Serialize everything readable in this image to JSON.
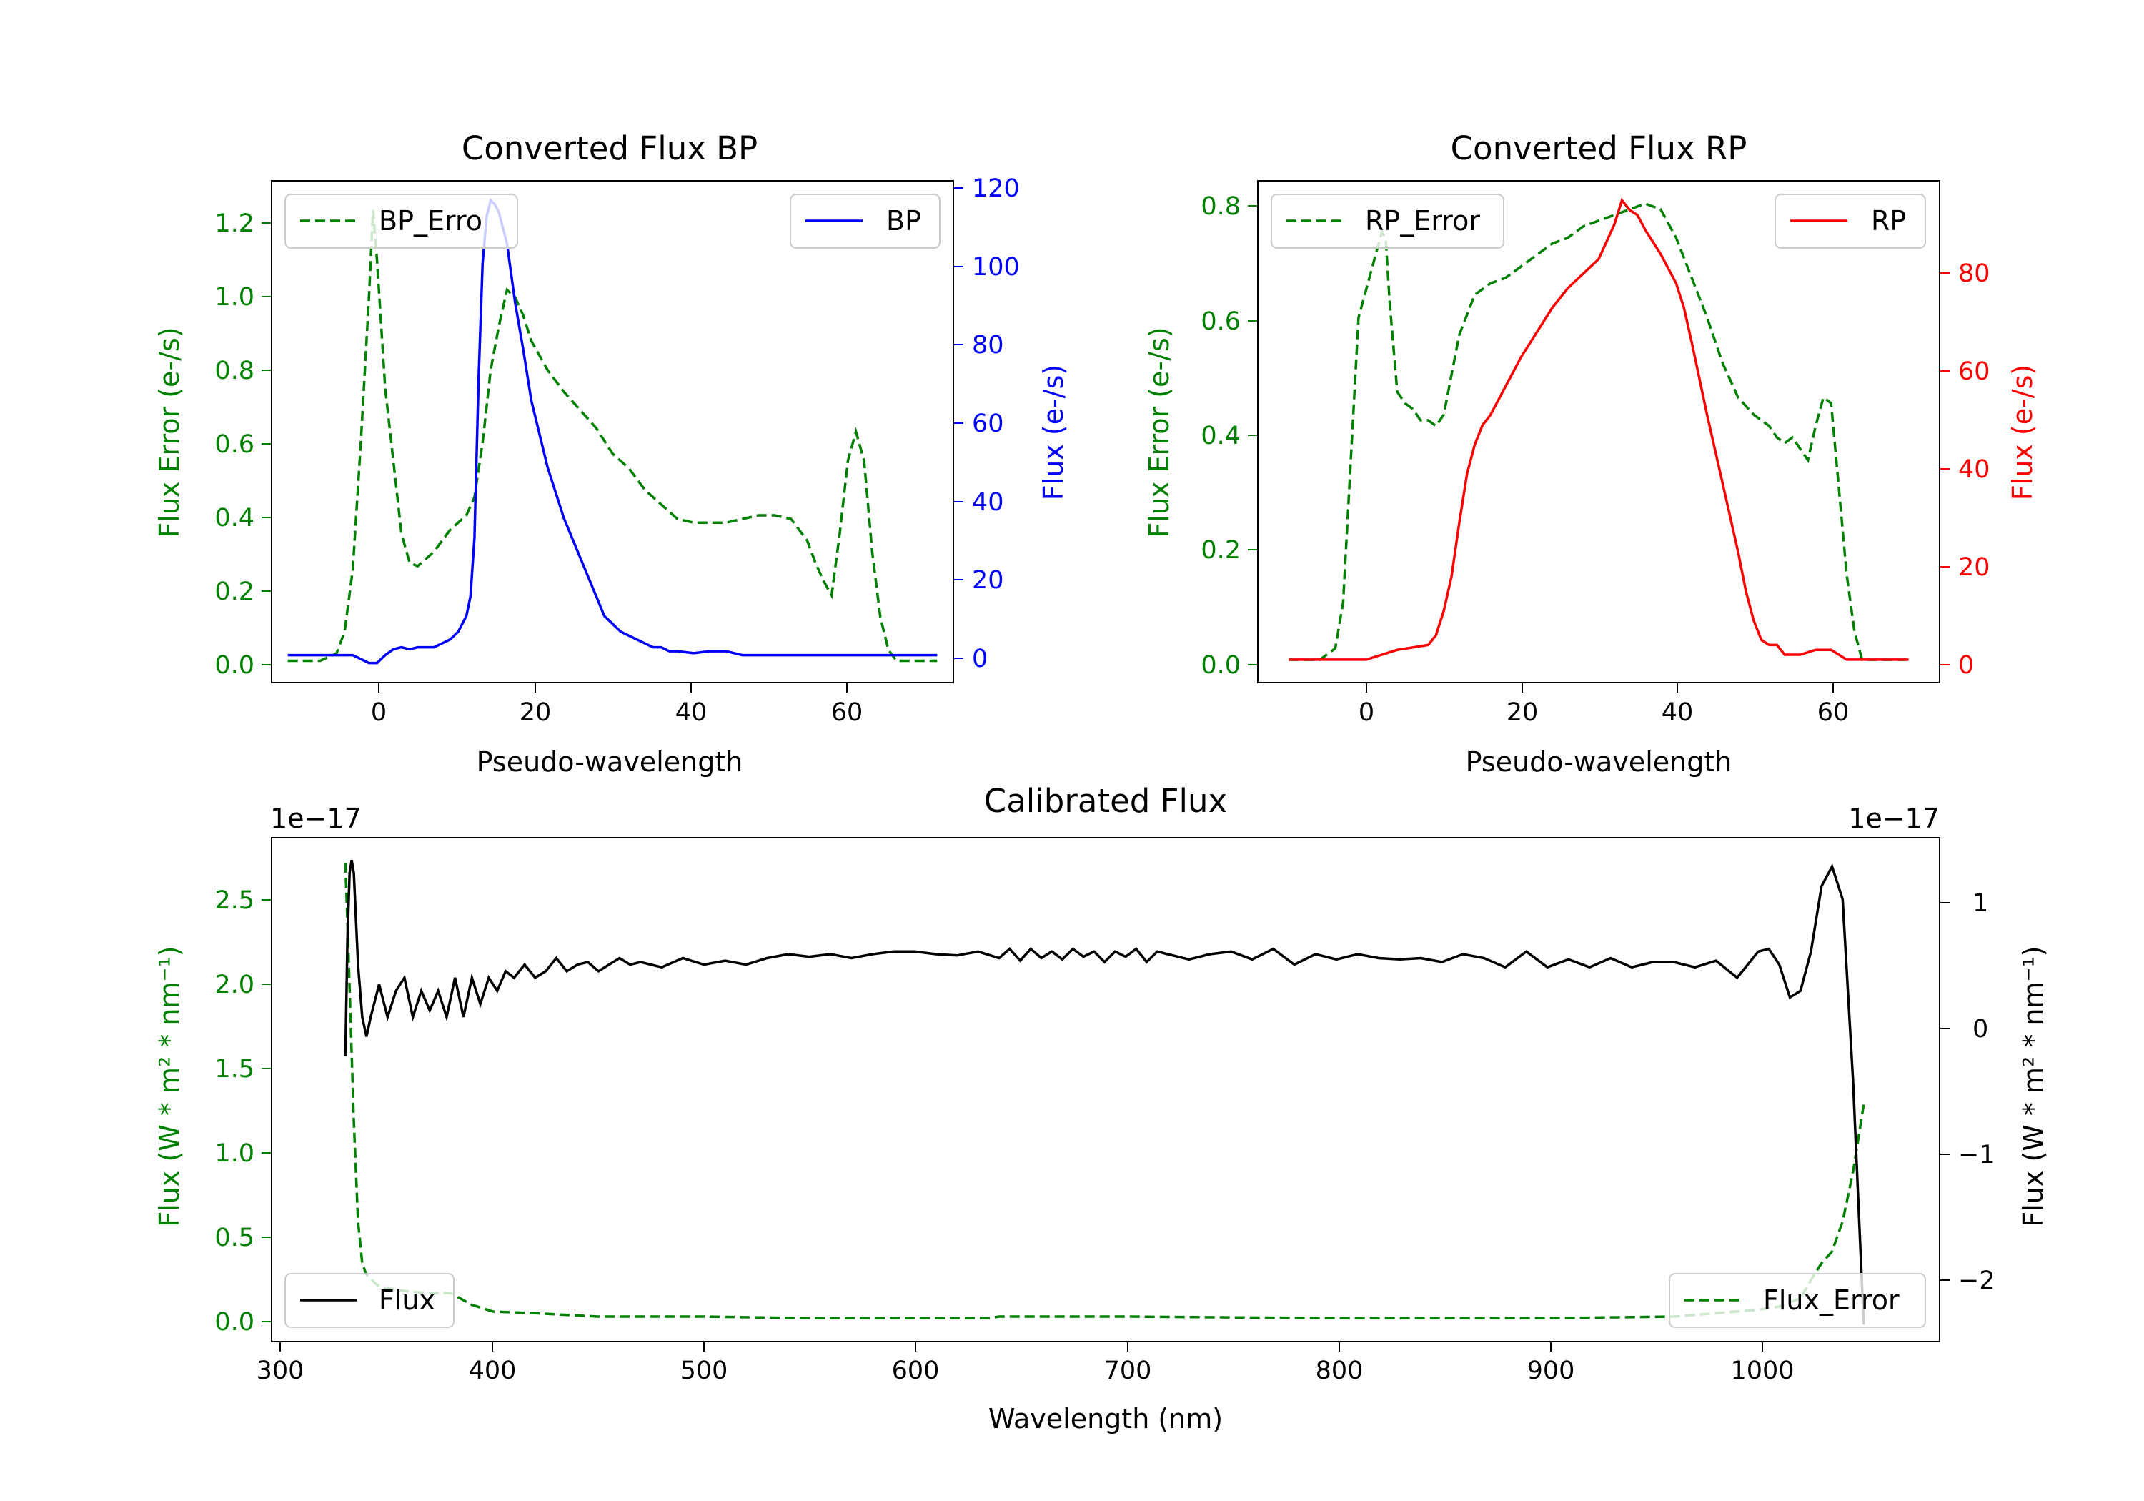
{
  "chart_data": [
    {
      "type": "line",
      "title": "Converted Flux BP",
      "xlabel": "Pseudo-wavelength",
      "ylabel_left": "Flux Error (e-/s)",
      "ylabel_right": "Flux (e-/s)",
      "xlim": [
        -12,
        72
      ],
      "ylim_left": [
        -0.06,
        1.32
      ],
      "ylim_right": [
        -7,
        121
      ],
      "xticks": [
        0,
        20,
        40,
        60
      ],
      "yticks_left": [
        0.0,
        0.2,
        0.4,
        0.6,
        0.8,
        1.0,
        1.2
      ],
      "yticks_left_labels": [
        "0.0",
        "0.2",
        "0.4",
        "0.6",
        "0.8",
        "1.0",
        "1.2"
      ],
      "yticks_right": [
        0,
        20,
        40,
        60,
        80,
        100,
        120
      ],
      "yticks_right_labels": [
        "0",
        "20",
        "40",
        "60",
        "80",
        "100",
        "120"
      ],
      "legend_left_position": "upper-left",
      "legend_right_position": "upper-right",
      "colors": {
        "left_axis": "#008000",
        "right_axis": "#0000ff"
      },
      "series": [
        {
          "name": "BP_Error",
          "legend_label": "BP_Erro",
          "axis": "left",
          "color": "#008000",
          "dash": true,
          "x": [
            -10,
            -6,
            -4,
            -3,
            -2,
            -1,
            0,
            0.5,
            1,
            2,
            3,
            4,
            5,
            6,
            8,
            10,
            12,
            13,
            14,
            15,
            16,
            17,
            18,
            19,
            20,
            22,
            24,
            26,
            28,
            30,
            32,
            34,
            36,
            38,
            40,
            42,
            44,
            46,
            48,
            50,
            52,
            54,
            55,
            56,
            57,
            58,
            59,
            60,
            61,
            62,
            63,
            64,
            65,
            66,
            68,
            70
          ],
          "y": [
            0.0,
            0.0,
            0.02,
            0.08,
            0.25,
            0.6,
            1.0,
            1.24,
            1.1,
            0.75,
            0.55,
            0.35,
            0.27,
            0.26,
            0.3,
            0.36,
            0.4,
            0.45,
            0.6,
            0.8,
            0.92,
            1.02,
            1.0,
            0.95,
            0.88,
            0.8,
            0.74,
            0.69,
            0.64,
            0.57,
            0.53,
            0.47,
            0.43,
            0.39,
            0.38,
            0.38,
            0.38,
            0.39,
            0.4,
            0.4,
            0.39,
            0.33,
            0.27,
            0.22,
            0.18,
            0.35,
            0.55,
            0.63,
            0.55,
            0.3,
            0.12,
            0.03,
            0.0,
            0.0,
            0.0,
            0.0
          ]
        },
        {
          "name": "BP",
          "legend_label": "BP",
          "axis": "right",
          "color": "#0000ff",
          "dash": false,
          "x": [
            -10,
            -6,
            -4,
            -2,
            -1,
            0,
            1,
            2,
            3,
            4,
            5,
            6,
            7,
            8,
            9,
            10,
            11,
            12,
            12.5,
            13,
            13.5,
            14,
            14.5,
            15,
            15.5,
            16,
            17,
            18,
            19,
            20,
            22,
            24,
            26,
            28,
            29,
            30,
            31,
            32,
            33,
            34,
            35,
            36,
            37,
            38,
            40,
            42,
            44,
            46,
            48,
            50,
            52,
            54,
            56,
            58,
            60,
            62,
            64,
            66,
            68,
            70
          ],
          "y": [
            0,
            0,
            0,
            0,
            -1,
            -2,
            -2,
            0,
            1.5,
            2,
            1.5,
            2,
            2,
            2,
            3,
            4,
            6,
            10,
            15,
            30,
            70,
            100,
            112,
            116,
            115,
            113,
            105,
            90,
            78,
            65,
            48,
            35,
            25,
            15,
            10,
            8,
            6,
            5,
            4,
            3,
            2,
            2,
            1,
            1,
            0.5,
            1,
            1,
            0,
            0,
            0,
            0,
            0,
            0,
            0,
            0,
            0,
            0,
            0,
            0,
            0
          ]
        }
      ]
    },
    {
      "type": "line",
      "title": "Converted Flux RP",
      "xlabel": "Pseudo-wavelength",
      "ylabel_left": "Flux Error (e-/s)",
      "ylabel_right": "Flux (e-/s)",
      "xlim": [
        -14,
        74
      ],
      "ylim_left": [
        -0.04,
        0.84
      ],
      "ylim_right": [
        -4.7,
        98
      ],
      "xticks": [
        0,
        20,
        40,
        60
      ],
      "yticks_left": [
        0.0,
        0.2,
        0.4,
        0.6,
        0.8
      ],
      "yticks_left_labels": [
        "0.0",
        "0.2",
        "0.4",
        "0.6",
        "0.8"
      ],
      "yticks_right": [
        0,
        20,
        40,
        60,
        80
      ],
      "yticks_right_labels": [
        "0",
        "20",
        "40",
        "60",
        "80"
      ],
      "legend_left_position": "upper-left",
      "legend_right_position": "upper-right",
      "colors": {
        "left_axis": "#008000",
        "right_axis": "#ff0000"
      },
      "series": [
        {
          "name": "RP_Error",
          "legend_label": "RP_Error",
          "axis": "left",
          "color": "#008000",
          "dash": true,
          "x": [
            -10,
            -6,
            -4,
            -3,
            -2,
            -1,
            0,
            1,
            2,
            2.5,
            3,
            4,
            5,
            6,
            7,
            8,
            9,
            10,
            12,
            14,
            16,
            18,
            20,
            22,
            24,
            26,
            28,
            30,
            32,
            34,
            36,
            38,
            40,
            42,
            44,
            46,
            48,
            50,
            52,
            53,
            54,
            55,
            56,
            57,
            58,
            59,
            60,
            61,
            62,
            63,
            64,
            65,
            67,
            70
          ],
          "y": [
            0.0,
            0.0,
            0.02,
            0.1,
            0.35,
            0.6,
            0.65,
            0.7,
            0.75,
            0.74,
            0.63,
            0.47,
            0.45,
            0.44,
            0.42,
            0.42,
            0.41,
            0.43,
            0.57,
            0.64,
            0.66,
            0.67,
            0.69,
            0.71,
            0.73,
            0.74,
            0.76,
            0.77,
            0.78,
            0.79,
            0.8,
            0.79,
            0.74,
            0.67,
            0.6,
            0.52,
            0.46,
            0.43,
            0.41,
            0.39,
            0.38,
            0.39,
            0.37,
            0.35,
            0.41,
            0.46,
            0.45,
            0.3,
            0.15,
            0.05,
            0.0,
            0.0,
            0.0,
            0.0
          ]
        },
        {
          "name": "RP",
          "legend_label": "RP",
          "axis": "right",
          "color": "#ff0000",
          "dash": false,
          "x": [
            -10,
            -5,
            0,
            2,
            4,
            6,
            8,
            9,
            10,
            11,
            12,
            13,
            14,
            15,
            16,
            18,
            20,
            22,
            24,
            26,
            28,
            30,
            32,
            33,
            34,
            35,
            36,
            38,
            40,
            41,
            42,
            44,
            46,
            48,
            49,
            50,
            51,
            52,
            53,
            54,
            55,
            56,
            58,
            60,
            62,
            64,
            66,
            70
          ],
          "y": [
            0,
            0,
            0,
            1,
            2,
            2.5,
            3,
            5,
            10,
            17,
            28,
            38,
            44,
            48,
            50,
            56,
            62,
            67,
            72,
            76,
            79,
            82,
            89,
            94,
            92,
            91,
            88,
            83,
            77,
            72,
            65,
            50,
            36,
            22,
            14,
            8,
            4,
            3,
            3,
            1,
            1,
            1,
            2,
            2,
            0,
            0,
            0,
            0
          ]
        }
      ]
    },
    {
      "type": "line",
      "title": "Calibrated Flux",
      "xlabel": "Wavelength (nm)",
      "ylabel_left": "Flux (W * m² * nm⁻¹)",
      "ylabel_right": "Flux (W * m² * nm⁻¹)",
      "offset_left": "1e−17",
      "offset_right": "1e−17",
      "xlim": [
        295,
        1086
      ],
      "ylim_left": [
        -0.12,
        2.9
      ],
      "ylim_right": [
        -2.48,
        1.37
      ],
      "xticks": [
        300,
        400,
        500,
        600,
        700,
        800,
        900,
        1000
      ],
      "yticks_left": [
        0.0,
        0.5,
        1.0,
        1.5,
        2.0,
        2.5
      ],
      "yticks_left_labels": [
        "0.0",
        "0.5",
        "1.0",
        "1.5",
        "2.0",
        "2.5"
      ],
      "yticks_right": [
        -2,
        -1,
        0,
        1
      ],
      "yticks_right_labels": [
        "−2",
        "−1",
        "0",
        "1"
      ],
      "legend_left_position": "lower-left",
      "legend_right_position": "lower-right",
      "colors": {
        "left_axis": "#008000",
        "right_axis": "#000000"
      },
      "series": [
        {
          "name": "Flux_Error",
          "legend_label": "Flux_Error",
          "axis": "left",
          "color": "#008000",
          "dash": true,
          "x": [
            330,
            332,
            334,
            336,
            338,
            340,
            345,
            350,
            360,
            370,
            380,
            390,
            400,
            420,
            450,
            500,
            550,
            600,
            635,
            640,
            700,
            800,
            900,
            960,
            980,
            1000,
            1010,
            1020,
            1025,
            1030,
            1035,
            1040,
            1045,
            1050
          ],
          "y": [
            2.75,
            2.0,
            1.2,
            0.6,
            0.35,
            0.28,
            0.22,
            0.2,
            0.18,
            0.17,
            0.17,
            0.1,
            0.06,
            0.05,
            0.03,
            0.03,
            0.02,
            0.02,
            0.02,
            0.03,
            0.03,
            0.02,
            0.02,
            0.03,
            0.05,
            0.07,
            0.09,
            0.14,
            0.25,
            0.35,
            0.42,
            0.6,
            0.9,
            1.3
          ]
        },
        {
          "name": "Flux",
          "legend_label": "Flux",
          "axis": "right",
          "color": "#000000",
          "dash": false,
          "x": [
            330,
            331,
            332,
            333,
            334,
            336,
            338,
            340,
            342,
            346,
            350,
            354,
            358,
            362,
            366,
            370,
            374,
            378,
            382,
            386,
            390,
            394,
            398,
            402,
            406,
            410,
            415,
            420,
            425,
            430,
            435,
            440,
            445,
            450,
            455,
            460,
            465,
            470,
            480,
            490,
            500,
            510,
            520,
            530,
            540,
            550,
            560,
            570,
            580,
            590,
            600,
            610,
            620,
            630,
            640,
            645,
            650,
            655,
            660,
            665,
            670,
            675,
            680,
            685,
            690,
            695,
            700,
            705,
            710,
            715,
            720,
            730,
            740,
            750,
            760,
            770,
            780,
            790,
            800,
            810,
            820,
            830,
            840,
            850,
            860,
            870,
            880,
            890,
            900,
            910,
            920,
            930,
            940,
            950,
            960,
            970,
            980,
            990,
            1000,
            1005,
            1010,
            1015,
            1020,
            1025,
            1030,
            1035,
            1040,
            1045,
            1050
          ],
          "y": [
            -0.3,
            0.6,
            1.1,
            1.2,
            1.1,
            0.4,
            0.0,
            -0.15,
            0.0,
            0.25,
            0.0,
            0.2,
            0.3,
            0.0,
            0.2,
            0.05,
            0.2,
            0.0,
            0.3,
            0.0,
            0.3,
            0.1,
            0.3,
            0.2,
            0.35,
            0.3,
            0.4,
            0.3,
            0.35,
            0.45,
            0.35,
            0.4,
            0.42,
            0.35,
            0.4,
            0.45,
            0.4,
            0.42,
            0.38,
            0.45,
            0.4,
            0.43,
            0.4,
            0.45,
            0.48,
            0.46,
            0.48,
            0.45,
            0.48,
            0.5,
            0.5,
            0.48,
            0.47,
            0.5,
            0.45,
            0.52,
            0.43,
            0.52,
            0.45,
            0.5,
            0.44,
            0.52,
            0.46,
            0.5,
            0.42,
            0.5,
            0.46,
            0.52,
            0.42,
            0.5,
            0.48,
            0.44,
            0.48,
            0.5,
            0.44,
            0.52,
            0.4,
            0.48,
            0.44,
            0.48,
            0.45,
            0.44,
            0.45,
            0.42,
            0.48,
            0.45,
            0.38,
            0.5,
            0.38,
            0.44,
            0.38,
            0.45,
            0.38,
            0.42,
            0.42,
            0.38,
            0.43,
            0.3,
            0.5,
            0.52,
            0.4,
            0.15,
            0.2,
            0.5,
            1.0,
            1.15,
            0.9,
            -0.5,
            -2.35
          ]
        }
      ]
    }
  ]
}
